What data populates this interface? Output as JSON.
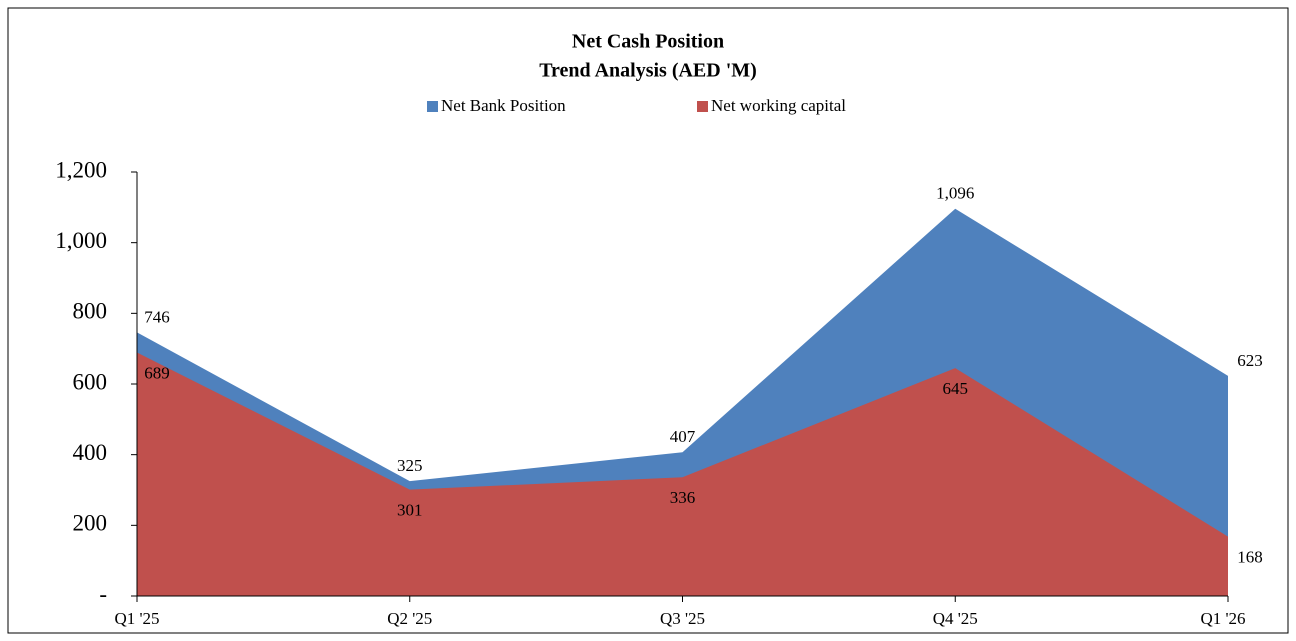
{
  "chart_data": {
    "type": "area",
    "title": "Net Cash Position",
    "subtitle": "Trend Analysis (AED 'M)",
    "categories": [
      "Q1 '25",
      "Q2 '25",
      "Q3 '25",
      "Q4 '25",
      "Q1 '26"
    ],
    "series": [
      {
        "name": "Net Bank Position",
        "color": "#4f81bd",
        "values": [
          746,
          325,
          407,
          1096,
          623
        ],
        "value_labels": [
          "746",
          "325",
          "407",
          "1,096",
          "623"
        ]
      },
      {
        "name": "Net working capital",
        "color": "#c0504d",
        "values": [
          689,
          301,
          336,
          645,
          168
        ]
      }
    ],
    "ylim": [
      0,
      1200
    ],
    "yticks": [
      {
        "value": 0,
        "label": "-"
      },
      200,
      400,
      600,
      800,
      {
        "value": 1000,
        "label": "1,000"
      },
      {
        "value": 1200,
        "label": "1,200"
      }
    ],
    "grid": false,
    "legend": "top"
  }
}
